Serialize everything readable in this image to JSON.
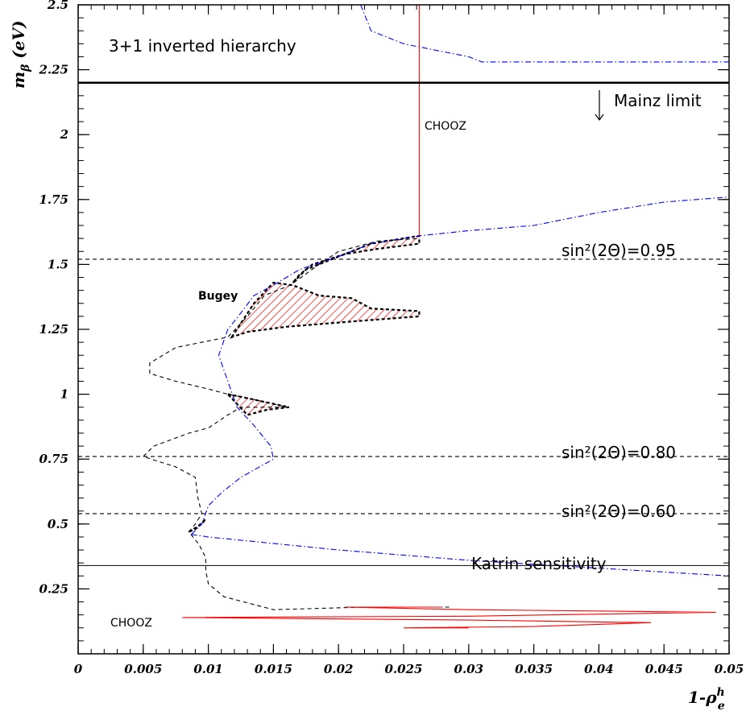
{
  "chart_data": {
    "type": "line",
    "xlim": [
      0,
      0.05
    ],
    "ylim": [
      0,
      2.5
    ],
    "x_ticks": [
      "0",
      "0.005",
      "0.01",
      "0.015",
      "0.02",
      "0.025",
      "0.03",
      "0.035",
      "0.04",
      "0.045",
      "0.05"
    ],
    "y_ticks": [
      "0.25",
      "0.5",
      "0.75",
      "1",
      "1.25",
      "1.5",
      "1.75",
      "2",
      "2.25",
      "2.5"
    ],
    "xlabel": "1-ρ",
    "xlabel_sup": "h",
    "xlabel_sub": "e",
    "ylabel": "m",
    "ylabel_sub": "β",
    "ylabel_unit": " (eV)",
    "annotations": {
      "title": "3+1 inverted hierarchy",
      "mainz": "Mainz limit",
      "chooz_top": "CHOOZ",
      "chooz_bottom": "CHOOZ",
      "bugey": "Bugey",
      "sin095": "sin²(2Θ)=0.95",
      "sin080": "sin²(2Θ)=0.80",
      "sin060": "sin²(2Θ)=0.60",
      "katrin": "Katrin sensitivity"
    },
    "hlines": [
      {
        "y": 2.2,
        "style": "solid-thick",
        "name": "Mainz limit"
      },
      {
        "y": 1.52,
        "style": "dashed",
        "name": "sin²(2Θ)=0.95"
      },
      {
        "y": 0.76,
        "style": "dashed",
        "name": "sin²(2Θ)=0.80"
      },
      {
        "y": 0.54,
        "style": "dashed",
        "name": "sin²(2Θ)=0.60"
      },
      {
        "y": 0.34,
        "style": "solid",
        "name": "Katrin sensitivity"
      }
    ],
    "series": [
      {
        "color": "#0000ff",
        "style": "dashdot",
        "points": [
          [
            0.0217,
            2.5
          ],
          [
            0.0225,
            2.4
          ],
          [
            0.025,
            2.35
          ],
          [
            0.03,
            2.3
          ],
          [
            0.031,
            2.28
          ],
          [
            0.05,
            2.28
          ]
        ]
      },
      {
        "color": "#0000ff",
        "style": "dashdot",
        "points": [
          [
            0.0087,
            0.46
          ],
          [
            0.01,
            0.45
          ],
          [
            0.02,
            0.4
          ],
          [
            0.03,
            0.36
          ],
          [
            0.04,
            0.33
          ],
          [
            0.05,
            0.3
          ]
        ]
      },
      {
        "color": "#0000ff",
        "style": "dashdot",
        "points": [
          [
            0.0087,
            0.46
          ],
          [
            0.0095,
            0.5
          ],
          [
            0.01,
            0.57
          ],
          [
            0.011,
            0.62
          ],
          [
            0.0125,
            0.68
          ],
          [
            0.015,
            0.75
          ],
          [
            0.0148,
            0.8
          ],
          [
            0.0135,
            0.88
          ],
          [
            0.0122,
            0.95
          ],
          [
            0.0115,
            1.05
          ],
          [
            0.0108,
            1.15
          ],
          [
            0.0115,
            1.25
          ],
          [
            0.0123,
            1.3
          ],
          [
            0.0135,
            1.38
          ],
          [
            0.015,
            1.42
          ],
          [
            0.017,
            1.48
          ],
          [
            0.02,
            1.53
          ],
          [
            0.0225,
            1.58
          ],
          [
            0.0262,
            1.61
          ],
          [
            0.03,
            1.63
          ],
          [
            0.035,
            1.65
          ],
          [
            0.04,
            1.7
          ],
          [
            0.045,
            1.74
          ],
          [
            0.05,
            1.76
          ]
        ]
      },
      {
        "color": "#000000",
        "style": "dashed",
        "points": [
          [
            0.0285,
            0.18
          ],
          [
            0.022,
            0.18
          ],
          [
            0.015,
            0.17
          ],
          [
            0.0112,
            0.22
          ],
          [
            0.01,
            0.27
          ],
          [
            0.0098,
            0.32
          ],
          [
            0.0098,
            0.37
          ],
          [
            0.0093,
            0.42
          ],
          [
            0.0085,
            0.47
          ],
          [
            0.009,
            0.5
          ],
          [
            0.0095,
            0.54
          ],
          [
            0.0092,
            0.6
          ],
          [
            0.009,
            0.68
          ],
          [
            0.0075,
            0.72
          ],
          [
            0.005,
            0.76
          ],
          [
            0.0058,
            0.8
          ],
          [
            0.0085,
            0.85
          ],
          [
            0.01,
            0.87
          ],
          [
            0.0115,
            0.92
          ],
          [
            0.0125,
            0.95
          ],
          [
            0.016,
            0.95
          ],
          [
            0.0135,
            0.98
          ],
          [
            0.0115,
            1.0
          ],
          [
            0.01,
            1.02
          ],
          [
            0.0075,
            1.05
          ],
          [
            0.0055,
            1.08
          ],
          [
            0.0055,
            1.12
          ],
          [
            0.0075,
            1.18
          ],
          [
            0.0095,
            1.2
          ],
          [
            0.0115,
            1.22
          ],
          [
            0.013,
            1.3
          ],
          [
            0.0143,
            1.38
          ],
          [
            0.0163,
            1.42
          ],
          [
            0.0185,
            1.5
          ],
          [
            0.02,
            1.55
          ],
          [
            0.023,
            1.59
          ],
          [
            0.0262,
            1.6
          ]
        ]
      },
      {
        "color": "#ff0000",
        "style": "solid",
        "points": [
          [
            0.0262,
            2.5
          ],
          [
            0.0262,
            1.61
          ]
        ]
      },
      {
        "color": "#ff0000",
        "style": "solid",
        "points": [
          [
            0.028,
            0.18
          ],
          [
            0.021,
            0.18
          ],
          [
            0.0205,
            0.18
          ],
          [
            0.03,
            0.17
          ],
          [
            0.049,
            0.16
          ],
          [
            0.03,
            0.145
          ],
          [
            0.008,
            0.14
          ],
          [
            0.03,
            0.13
          ],
          [
            0.044,
            0.12
          ],
          [
            0.035,
            0.105
          ],
          [
            0.025,
            0.1
          ],
          [
            0.03,
            0.1
          ]
        ]
      }
    ],
    "shaded_regions": [
      {
        "name": "band-top",
        "points": [
          [
            0.0165,
            1.43
          ],
          [
            0.0175,
            1.48
          ],
          [
            0.02,
            1.53
          ],
          [
            0.0225,
            1.58
          ],
          [
            0.0262,
            1.61
          ],
          [
            0.0262,
            1.58
          ],
          [
            0.023,
            1.56
          ],
          [
            0.0205,
            1.54
          ],
          [
            0.018,
            1.5
          ],
          [
            0.017,
            1.46
          ]
        ]
      },
      {
        "name": "band-middle",
        "points": [
          [
            0.0118,
            1.22
          ],
          [
            0.0135,
            1.35
          ],
          [
            0.015,
            1.43
          ],
          [
            0.0165,
            1.42
          ],
          [
            0.0185,
            1.38
          ],
          [
            0.021,
            1.37
          ],
          [
            0.0225,
            1.33
          ],
          [
            0.0262,
            1.32
          ],
          [
            0.0262,
            1.3
          ],
          [
            0.021,
            1.28
          ],
          [
            0.016,
            1.26
          ],
          [
            0.013,
            1.24
          ]
        ]
      },
      {
        "name": "band-lower",
        "points": [
          [
            0.0115,
            1.0
          ],
          [
            0.0125,
            0.99
          ],
          [
            0.0162,
            0.95
          ],
          [
            0.0145,
            0.94
          ],
          [
            0.013,
            0.92
          ]
        ]
      },
      {
        "name": "band-small",
        "points": [
          [
            0.0085,
            0.47
          ],
          [
            0.0095,
            0.5
          ],
          [
            0.0098,
            0.52
          ],
          [
            0.009,
            0.48
          ]
        ]
      }
    ]
  }
}
